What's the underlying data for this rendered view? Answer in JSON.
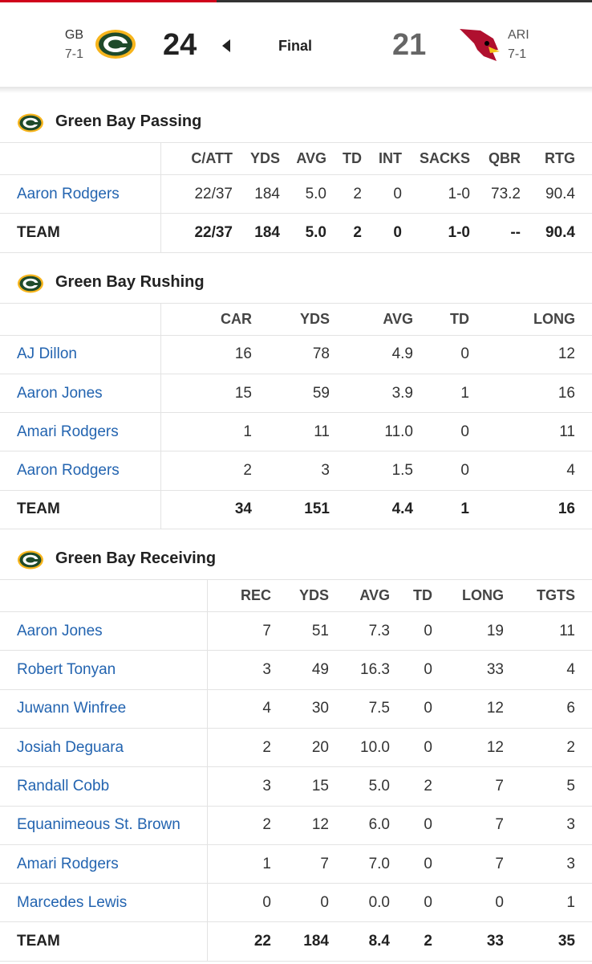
{
  "header": {
    "away": {
      "abbr": "GB",
      "record": "7-1",
      "score": "24"
    },
    "status": "Final",
    "home": {
      "abbr": "ARI",
      "record": "7-1",
      "score": "21"
    }
  },
  "sections": [
    {
      "title": "Green Bay Passing",
      "columns": [
        "C/ATT",
        "YDS",
        "AVG",
        "TD",
        "INT",
        "SACKS",
        "QBR",
        "RTG"
      ],
      "rows": [
        [
          "Aaron Rodgers",
          "22/37",
          "184",
          "5.0",
          "2",
          "0",
          "1-0",
          "73.2",
          "90.4"
        ],
        [
          "TEAM",
          "22/37",
          "184",
          "5.0",
          "2",
          "0",
          "1-0",
          "--",
          "90.4"
        ]
      ]
    },
    {
      "title": "Green Bay Rushing",
      "columns": [
        "CAR",
        "YDS",
        "AVG",
        "TD",
        "LONG"
      ],
      "rows": [
        [
          "AJ Dillon",
          "16",
          "78",
          "4.9",
          "0",
          "12"
        ],
        [
          "Aaron Jones",
          "15",
          "59",
          "3.9",
          "1",
          "16"
        ],
        [
          "Amari Rodgers",
          "1",
          "11",
          "11.0",
          "0",
          "11"
        ],
        [
          "Aaron Rodgers",
          "2",
          "3",
          "1.5",
          "0",
          "4"
        ],
        [
          "TEAM",
          "34",
          "151",
          "4.4",
          "1",
          "16"
        ]
      ]
    },
    {
      "title": "Green Bay Receiving",
      "columns": [
        "REC",
        "YDS",
        "AVG",
        "TD",
        "LONG",
        "TGTS"
      ],
      "rows": [
        [
          "Aaron Jones",
          "7",
          "51",
          "7.3",
          "0",
          "19",
          "11"
        ],
        [
          "Robert Tonyan",
          "3",
          "49",
          "16.3",
          "0",
          "33",
          "4"
        ],
        [
          "Juwann Winfree",
          "4",
          "30",
          "7.5",
          "0",
          "12",
          "6"
        ],
        [
          "Josiah Deguara",
          "2",
          "20",
          "10.0",
          "0",
          "12",
          "2"
        ],
        [
          "Randall Cobb",
          "3",
          "15",
          "5.0",
          "2",
          "7",
          "5"
        ],
        [
          "Equanimeous St. Brown",
          "2",
          "12",
          "6.0",
          "0",
          "7",
          "3"
        ],
        [
          "Amari Rodgers",
          "1",
          "7",
          "7.0",
          "0",
          "7",
          "3"
        ],
        [
          "Marcedes Lewis",
          "0",
          "0",
          "0.0",
          "0",
          "0",
          "1"
        ],
        [
          "TEAM",
          "22",
          "184",
          "8.4",
          "2",
          "33",
          "35"
        ]
      ]
    }
  ]
}
